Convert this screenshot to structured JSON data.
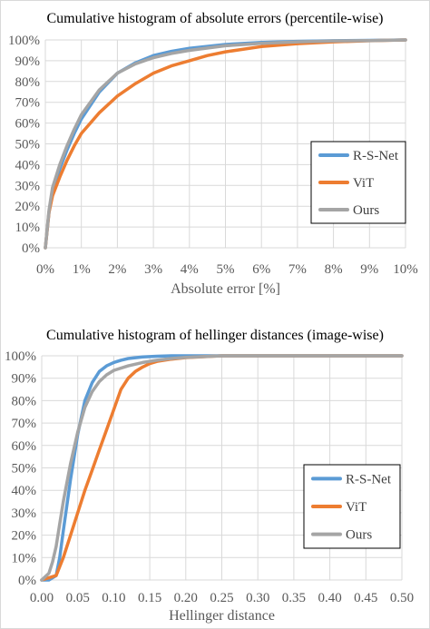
{
  "chart_data": [
    {
      "type": "line",
      "title": "Cumulative histogram of absolute errors (percentile-wise)",
      "xlabel": "Absolute error [%]",
      "ylabel": "",
      "x_tick_labels": [
        "0%",
        "1%",
        "2%",
        "3%",
        "4%",
        "5%",
        "6%",
        "7%",
        "8%",
        "9%",
        "10%"
      ],
      "y_tick_labels": [
        "0%",
        "10%",
        "20%",
        "30%",
        "40%",
        "50%",
        "60%",
        "70%",
        "80%",
        "90%",
        "100%"
      ],
      "xlim": [
        0,
        10
      ],
      "ylim": [
        0,
        100
      ],
      "grid": true,
      "legend_position": "right-middle",
      "series": [
        {
          "name": "R-S-Net",
          "color": "#5b9bd5",
          "x": [
            0,
            0.1,
            0.2,
            0.4,
            0.6,
            0.8,
            1.0,
            1.5,
            2.0,
            2.5,
            3.0,
            3.5,
            4.0,
            5.0,
            6.0,
            7.0,
            8.0,
            9.0,
            10.0
          ],
          "y": [
            0,
            17,
            27,
            38,
            47,
            55,
            62,
            75,
            84,
            89,
            92.5,
            94.5,
            96,
            97.8,
            98.8,
            99.3,
            99.6,
            99.8,
            100
          ]
        },
        {
          "name": "ViT",
          "color": "#ed7d31",
          "x": [
            0,
            0.1,
            0.2,
            0.4,
            0.6,
            0.8,
            1.0,
            1.5,
            2.0,
            2.5,
            3.0,
            3.5,
            4.0,
            4.5,
            5.0,
            6.0,
            7.0,
            8.0,
            9.0,
            10.0
          ],
          "y": [
            0,
            17,
            25,
            34,
            42,
            49,
            55,
            65,
            73,
            79,
            84,
            87.5,
            90,
            92.5,
            94.3,
            96.8,
            98.2,
            99.1,
            99.6,
            100
          ]
        },
        {
          "name": "Ours",
          "color": "#a5a5a5",
          "x": [
            0,
            0.1,
            0.2,
            0.4,
            0.6,
            0.8,
            1.0,
            1.5,
            2.0,
            2.5,
            3.0,
            3.5,
            4.0,
            5.0,
            6.0,
            7.0,
            8.0,
            9.0,
            10.0
          ],
          "y": [
            0,
            18,
            29,
            40,
            49,
            57,
            64,
            76,
            84,
            88.5,
            91.5,
            93.5,
            95,
            97.2,
            98.4,
            99.1,
            99.5,
            99.7,
            100
          ]
        }
      ]
    },
    {
      "type": "line",
      "title": "Cumulative histogram of hellinger distances (image-wise)",
      "xlabel": "Hellinger distance",
      "ylabel": "",
      "x_tick_labels": [
        "0.00",
        "0.05",
        "0.10",
        "0.15",
        "0.20",
        "0.25",
        "0.30",
        "0.35",
        "0.40",
        "0.45",
        "0.50"
      ],
      "y_tick_labels": [
        "0%",
        "10%",
        "20%",
        "30%",
        "40%",
        "50%",
        "60%",
        "70%",
        "80%",
        "90%",
        "100%"
      ],
      "xlim": [
        0,
        0.5
      ],
      "ylim": [
        0,
        100
      ],
      "grid": true,
      "legend_position": "bottom-right",
      "series": [
        {
          "name": "R-S-Net",
          "color": "#5b9bd5",
          "x": [
            0,
            0.01,
            0.02,
            0.025,
            0.03,
            0.04,
            0.05,
            0.06,
            0.07,
            0.08,
            0.09,
            0.1,
            0.11,
            0.12,
            0.14,
            0.16,
            0.18,
            0.2,
            0.25,
            0.5
          ],
          "y": [
            0,
            0,
            2,
            10,
            22,
            45,
            65,
            80,
            88,
            93,
            95.5,
            97,
            98,
            98.8,
            99.5,
            99.8,
            100,
            100,
            100,
            100
          ]
        },
        {
          "name": "ViT",
          "color": "#ed7d31",
          "x": [
            0,
            0.02,
            0.03,
            0.04,
            0.05,
            0.06,
            0.07,
            0.08,
            0.09,
            0.1,
            0.11,
            0.12,
            0.13,
            0.14,
            0.15,
            0.16,
            0.18,
            0.2,
            0.25,
            0.5
          ],
          "y": [
            0,
            2,
            10,
            20,
            30,
            40,
            49,
            58,
            67,
            76,
            85,
            90,
            93,
            95,
            96.5,
            97.5,
            98.5,
            99.2,
            100,
            100
          ]
        },
        {
          "name": "Ours",
          "color": "#a5a5a5",
          "x": [
            0,
            0.01,
            0.015,
            0.02,
            0.025,
            0.03,
            0.04,
            0.05,
            0.06,
            0.07,
            0.08,
            0.09,
            0.1,
            0.12,
            0.14,
            0.16,
            0.18,
            0.2,
            0.25,
            0.5
          ],
          "y": [
            0,
            3,
            8,
            15,
            25,
            35,
            52,
            66,
            77,
            84,
            88.5,
            91.5,
            93.5,
            95.5,
            97,
            98,
            98.8,
            99.3,
            100,
            100
          ]
        }
      ]
    }
  ]
}
